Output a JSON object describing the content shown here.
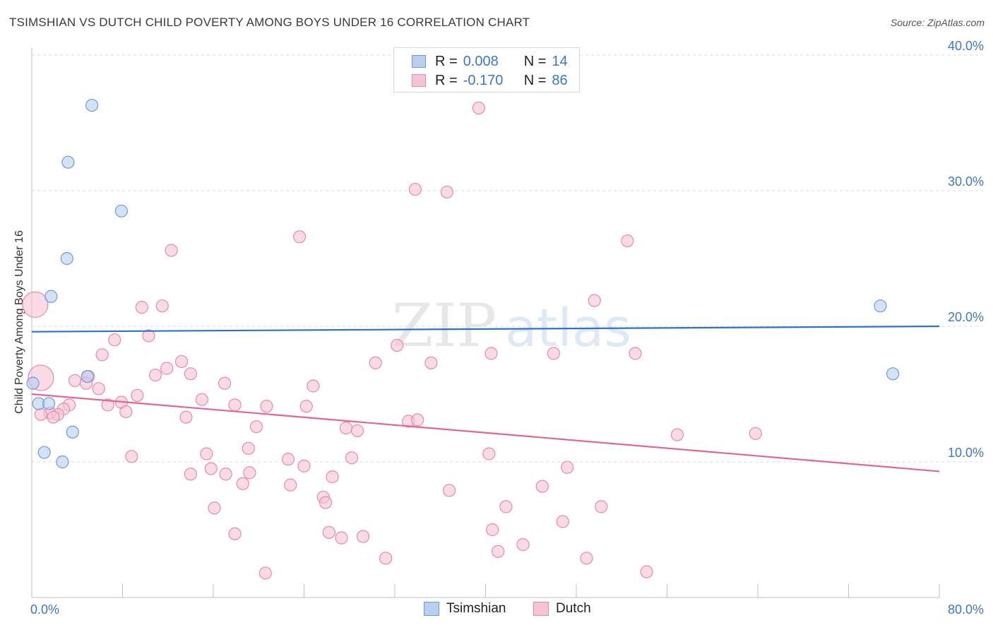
{
  "title": "TSIMSHIAN VS DUTCH CHILD POVERTY AMONG BOYS UNDER 16 CORRELATION CHART",
  "source": "Source: ZipAtlas.com",
  "watermark": {
    "zip": "ZIP",
    "atlas": "atlas"
  },
  "legend": {
    "tsimshian": {
      "r_label": "R =",
      "r_value": "0.008",
      "n_label": "N =",
      "n_value": "14"
    },
    "dutch": {
      "r_label": "R =",
      "r_value": "-0.170",
      "n_label": "N =",
      "n_value": "86"
    }
  },
  "bottom_legend": {
    "tsimshian": "Tsimshian",
    "dutch": "Dutch"
  },
  "colors": {
    "tsimshian_fill": "#b7cff0",
    "tsimshian_stroke": "#6f9bd8",
    "tsimshian_line": "#2f72c9",
    "dutch_fill": "#f6c3d3",
    "dutch_stroke": "#e88aaa",
    "dutch_line": "#e26596",
    "tick_label": "#3a78c9",
    "grid": "#dcdcdc"
  },
  "chart_data": {
    "type": "scatter",
    "title": "TSIMSHIAN VS DUTCH CHILD POVERTY AMONG BOYS UNDER 16 CORRELATION CHART",
    "ylabel": "Child Poverty Among Boys Under 16",
    "xlabel": "",
    "xlim": [
      0,
      80
    ],
    "ylim": [
      0,
      42
    ],
    "x_tick_labels": [
      "0.0%",
      "80.0%"
    ],
    "y_ticks": [
      10,
      20,
      30,
      40
    ],
    "y_tick_labels": [
      "10.0%",
      "20.0%",
      "30.0%",
      "40.0%"
    ],
    "grid": true,
    "legend_position": "top-center",
    "series": [
      {
        "name": "Tsimshian",
        "trend": {
          "x": [
            0,
            80
          ],
          "y": [
            19.6,
            20.0
          ]
        },
        "points": [
          {
            "x": 5.3,
            "y": 36.3
          },
          {
            "x": 3.2,
            "y": 32.1
          },
          {
            "x": 7.9,
            "y": 28.5
          },
          {
            "x": 3.1,
            "y": 25.0
          },
          {
            "x": 1.7,
            "y": 22.2
          },
          {
            "x": 74.8,
            "y": 21.5
          },
          {
            "x": 4.9,
            "y": 16.3
          },
          {
            "x": 0.1,
            "y": 15.8
          },
          {
            "x": 75.9,
            "y": 16.5
          },
          {
            "x": 0.6,
            "y": 14.3
          },
          {
            "x": 1.5,
            "y": 14.3
          },
          {
            "x": 3.6,
            "y": 12.2
          },
          {
            "x": 1.1,
            "y": 10.7
          },
          {
            "x": 2.7,
            "y": 10.0
          }
        ]
      },
      {
        "name": "Dutch",
        "trend": {
          "x": [
            0,
            80
          ],
          "y": [
            15.0,
            9.3
          ]
        },
        "points": [
          {
            "x": 39.4,
            "y": 36.1
          },
          {
            "x": 33.8,
            "y": 30.1
          },
          {
            "x": 36.6,
            "y": 29.9
          },
          {
            "x": 23.6,
            "y": 26.6
          },
          {
            "x": 52.5,
            "y": 26.3
          },
          {
            "x": 12.3,
            "y": 25.6
          },
          {
            "x": 0.3,
            "y": 21.6
          },
          {
            "x": 49.6,
            "y": 21.9
          },
          {
            "x": 9.7,
            "y": 21.4
          },
          {
            "x": 11.5,
            "y": 21.5
          },
          {
            "x": 10.3,
            "y": 19.3
          },
          {
            "x": 7.3,
            "y": 19.0
          },
          {
            "x": 32.2,
            "y": 18.6
          },
          {
            "x": 6.2,
            "y": 17.9
          },
          {
            "x": 40.5,
            "y": 18.0
          },
          {
            "x": 46.0,
            "y": 18.0
          },
          {
            "x": 53.2,
            "y": 18.0
          },
          {
            "x": 30.3,
            "y": 17.3
          },
          {
            "x": 35.2,
            "y": 17.3
          },
          {
            "x": 13.2,
            "y": 17.4
          },
          {
            "x": 11.9,
            "y": 16.9
          },
          {
            "x": 14.0,
            "y": 16.5
          },
          {
            "x": 10.9,
            "y": 16.4
          },
          {
            "x": 0.8,
            "y": 16.2
          },
          {
            "x": 5.0,
            "y": 16.3
          },
          {
            "x": 3.8,
            "y": 16.0
          },
          {
            "x": 4.8,
            "y": 15.8
          },
          {
            "x": 17.0,
            "y": 15.8
          },
          {
            "x": 24.8,
            "y": 15.6
          },
          {
            "x": 5.9,
            "y": 15.4
          },
          {
            "x": 9.3,
            "y": 14.9
          },
          {
            "x": 15.0,
            "y": 14.6
          },
          {
            "x": 7.9,
            "y": 14.4
          },
          {
            "x": 6.7,
            "y": 14.2
          },
          {
            "x": 3.3,
            "y": 14.2
          },
          {
            "x": 17.9,
            "y": 14.2
          },
          {
            "x": 20.7,
            "y": 14.1
          },
          {
            "x": 24.2,
            "y": 14.1
          },
          {
            "x": 2.8,
            "y": 13.9
          },
          {
            "x": 8.3,
            "y": 13.7
          },
          {
            "x": 1.6,
            "y": 13.6
          },
          {
            "x": 2.3,
            "y": 13.5
          },
          {
            "x": 1.9,
            "y": 13.3
          },
          {
            "x": 13.6,
            "y": 13.3
          },
          {
            "x": 33.2,
            "y": 13.0
          },
          {
            "x": 34.0,
            "y": 13.1
          },
          {
            "x": 19.8,
            "y": 12.6
          },
          {
            "x": 27.7,
            "y": 12.5
          },
          {
            "x": 28.7,
            "y": 12.3
          },
          {
            "x": 56.9,
            "y": 12.0
          },
          {
            "x": 63.8,
            "y": 12.1
          },
          {
            "x": 19.1,
            "y": 11.0
          },
          {
            "x": 15.4,
            "y": 10.6
          },
          {
            "x": 40.3,
            "y": 10.6
          },
          {
            "x": 8.8,
            "y": 10.4
          },
          {
            "x": 22.6,
            "y": 10.2
          },
          {
            "x": 28.2,
            "y": 10.3
          },
          {
            "x": 15.8,
            "y": 9.5
          },
          {
            "x": 24.0,
            "y": 9.7
          },
          {
            "x": 47.2,
            "y": 9.6
          },
          {
            "x": 14.0,
            "y": 9.1
          },
          {
            "x": 17.1,
            "y": 9.1
          },
          {
            "x": 19.2,
            "y": 9.2
          },
          {
            "x": 26.5,
            "y": 8.9
          },
          {
            "x": 18.6,
            "y": 8.4
          },
          {
            "x": 22.8,
            "y": 8.3
          },
          {
            "x": 45.0,
            "y": 8.2
          },
          {
            "x": 36.8,
            "y": 7.9
          },
          {
            "x": 25.7,
            "y": 7.4
          },
          {
            "x": 25.9,
            "y": 7.0
          },
          {
            "x": 16.1,
            "y": 6.6
          },
          {
            "x": 41.8,
            "y": 6.7
          },
          {
            "x": 50.2,
            "y": 6.7
          },
          {
            "x": 46.8,
            "y": 5.6
          },
          {
            "x": 40.6,
            "y": 5.0
          },
          {
            "x": 17.9,
            "y": 4.7
          },
          {
            "x": 26.2,
            "y": 4.8
          },
          {
            "x": 27.3,
            "y": 4.4
          },
          {
            "x": 29.2,
            "y": 4.5
          },
          {
            "x": 43.3,
            "y": 3.9
          },
          {
            "x": 41.1,
            "y": 3.4
          },
          {
            "x": 31.2,
            "y": 2.9
          },
          {
            "x": 48.9,
            "y": 2.9
          },
          {
            "x": 20.6,
            "y": 1.8
          },
          {
            "x": 54.2,
            "y": 1.9
          },
          {
            "x": 0.8,
            "y": 13.5
          }
        ]
      }
    ]
  }
}
